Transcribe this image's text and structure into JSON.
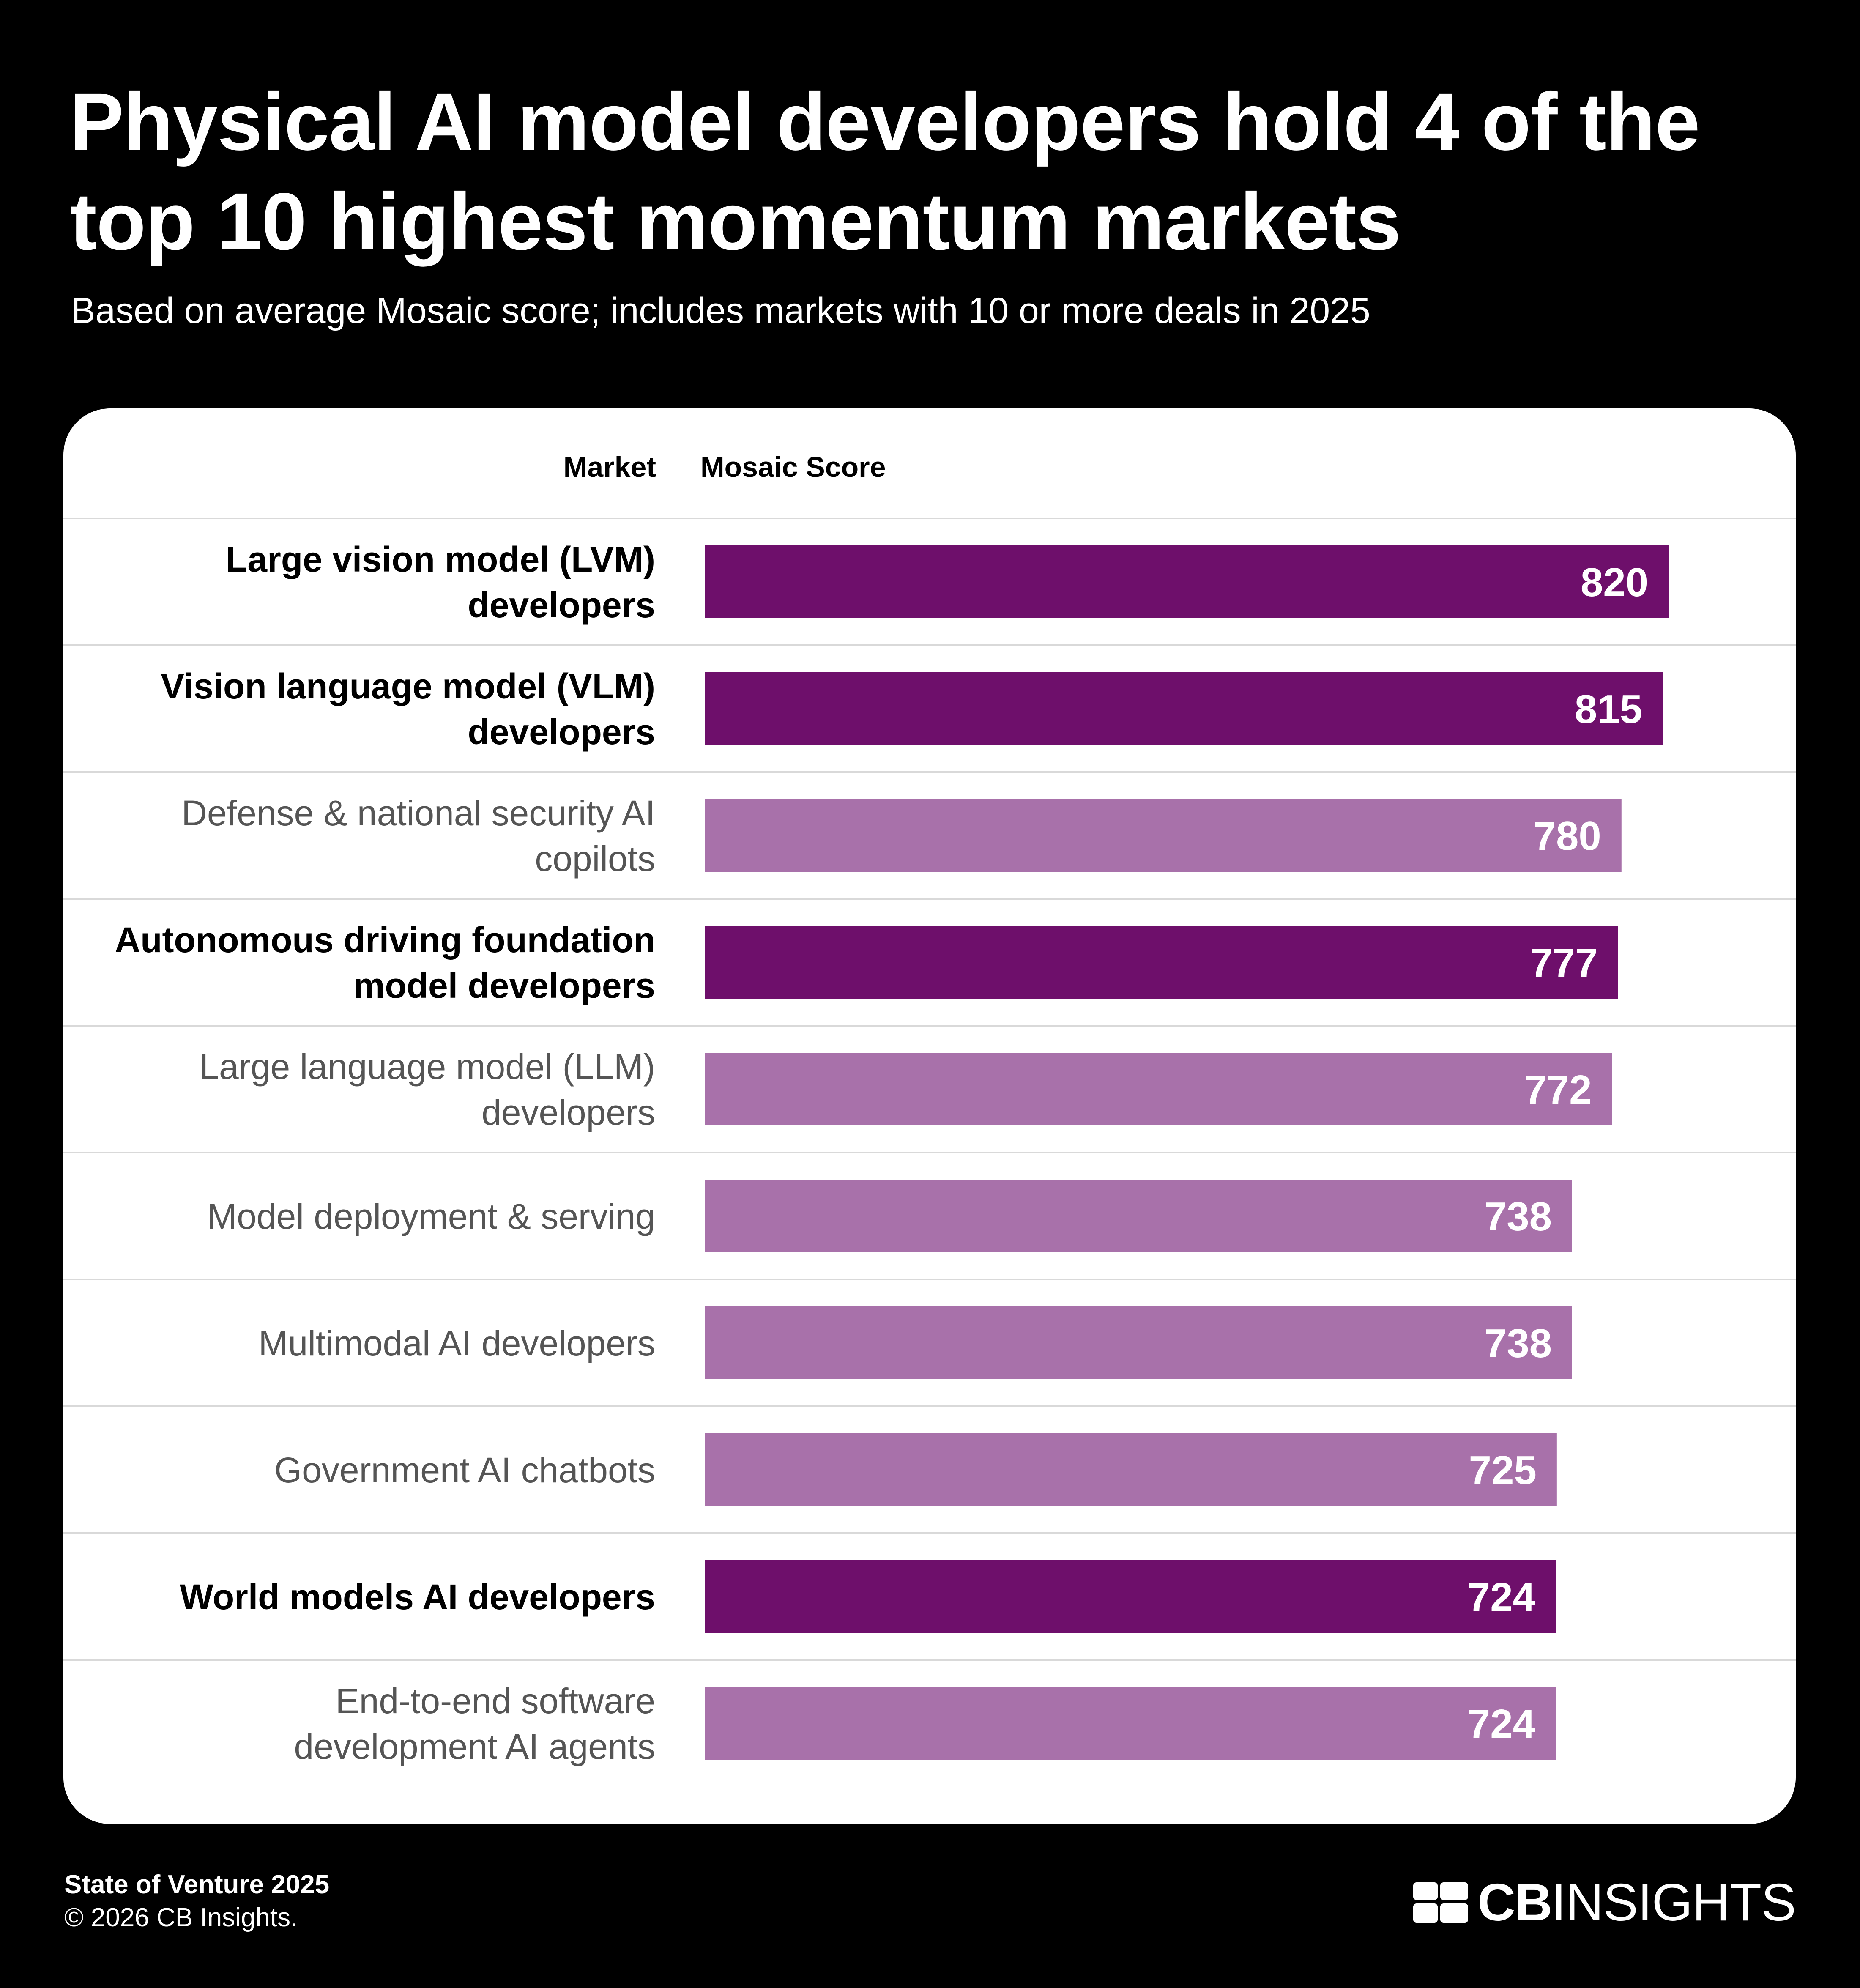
{
  "header": {
    "title_line1": "Physical AI model developers hold 4 of the",
    "title_line2": "top 10 highest momentum markets",
    "subtitle": "Based on average Mosaic score; includes markets with 10 or more deals in 2025"
  },
  "columns": {
    "market": "Market",
    "score": "Mosaic Score"
  },
  "colors": {
    "highlight": "#6e0f6b",
    "standard": "#a871aa",
    "highlight_label": "#000000",
    "standard_label": "#555555",
    "divider": "#d9d9d9"
  },
  "chart_data": {
    "type": "bar",
    "orientation": "horizontal",
    "title": "Physical AI model developers hold 4 of the top 10 highest momentum markets",
    "xlabel": "Mosaic Score",
    "ylabel": "Market",
    "xlim": [
      0,
      820
    ],
    "categories": [
      [
        "Large vision model (LVM)",
        "developers"
      ],
      [
        "Vision language model (VLM)",
        "developers"
      ],
      [
        "Defense & national security AI",
        "copilots"
      ],
      [
        "Autonomous driving foundation",
        "model developers"
      ],
      [
        "Large language model (LLM)",
        "developers"
      ],
      [
        "Model deployment & serving"
      ],
      [
        "Multimodal AI developers"
      ],
      [
        "Government AI chatbots"
      ],
      [
        "World models AI developers"
      ],
      [
        "End-to-end software",
        "development AI agents"
      ]
    ],
    "values": [
      820,
      815,
      780,
      777,
      772,
      738,
      738,
      725,
      724,
      724
    ],
    "highlighted": [
      true,
      true,
      false,
      true,
      false,
      false,
      false,
      false,
      true,
      false
    ]
  },
  "footer": {
    "report": "State of Venture 2025",
    "copyright": "© 2026 CB Insights.",
    "logo_bold": "CB",
    "logo_light": "INSIGHTS"
  }
}
